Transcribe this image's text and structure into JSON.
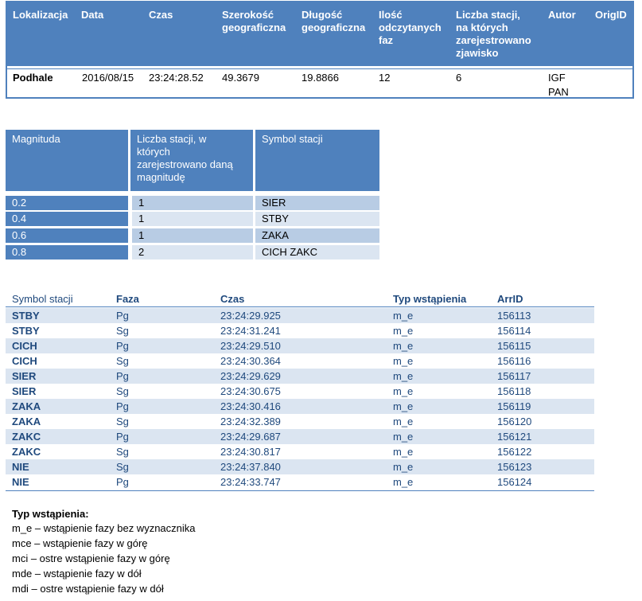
{
  "event_table": {
    "headers": [
      "Lokalizacja",
      "Data",
      "Czas",
      "Szerokość geograficzna",
      "Długość geograficzna",
      "Ilość odczytanych faz",
      "Liczba stacji, na których zarejestrowano zjawisko",
      "Autor",
      "OrigID"
    ],
    "header_lines": [
      [
        "Lokalizacja"
      ],
      [
        "Data"
      ],
      [
        "Czas"
      ],
      [
        "Szerokość",
        "geograficzna"
      ],
      [
        "Długość",
        "geograficzna"
      ],
      [
        "Ilość",
        "odczytanych",
        "faz"
      ],
      [
        "Liczba stacji,",
        "na których",
        "zarejestrowano",
        "zjawisko"
      ],
      [
        "Autor"
      ],
      [
        "OrigID"
      ]
    ],
    "row": {
      "lokalizacja": "Podhale",
      "data": "2016/08/15",
      "czas": "23:24:28.52",
      "szerokosc": "49.3679",
      "dlugosc": "19.8866",
      "ilosc_faz": "12",
      "liczba_stacji": "6",
      "autor_line1": "IGF",
      "autor_line2": "PAN",
      "origid": ""
    }
  },
  "magnitude_table": {
    "headers": {
      "magnituda": "Magnituda",
      "liczba_lines": [
        "Liczba stacji, w",
        "których",
        "zarejestrowano daną",
        "magnitudę"
      ],
      "symbol": "Symbol stacji"
    },
    "rows": [
      {
        "magnitude": "0.2",
        "count": "1",
        "stations": "SIER"
      },
      {
        "magnitude": "0.4",
        "count": "1",
        "stations": "STBY"
      },
      {
        "magnitude": "0.6",
        "count": "1",
        "stations": "ZAKA"
      },
      {
        "magnitude": "0.8",
        "count": "2",
        "stations": "CICH ZAKC"
      }
    ]
  },
  "phase_table": {
    "headers": {
      "station": "Symbol stacji",
      "phase": "Faza",
      "time": "Czas",
      "onset": "Typ wstąpienia",
      "arrid": "ArrID"
    },
    "rows": [
      {
        "station": "STBY",
        "phase": "Pg",
        "time": "23:24:29.925",
        "onset": "m_e",
        "arrid": "156113"
      },
      {
        "station": "STBY",
        "phase": "Sg",
        "time": "23:24:31.241",
        "onset": "m_e",
        "arrid": "156114"
      },
      {
        "station": "CICH",
        "phase": "Pg",
        "time": "23:24:29.510",
        "onset": "m_e",
        "arrid": "156115"
      },
      {
        "station": "CICH",
        "phase": "Sg",
        "time": "23:24:30.364",
        "onset": "m_e",
        "arrid": "156116"
      },
      {
        "station": "SIER",
        "phase": "Pg",
        "time": "23:24:29.629",
        "onset": "m_e",
        "arrid": "156117"
      },
      {
        "station": "SIER",
        "phase": "Sg",
        "time": "23:24:30.675",
        "onset": "m_e",
        "arrid": "156118"
      },
      {
        "station": "ZAKA",
        "phase": "Pg",
        "time": "23:24:30.416",
        "onset": "m_e",
        "arrid": "156119"
      },
      {
        "station": "ZAKA",
        "phase": "Sg",
        "time": "23:24:32.389",
        "onset": "m_e",
        "arrid": "156120"
      },
      {
        "station": "ZAKC",
        "phase": "Pg",
        "time": "23:24:29.687",
        "onset": "m_e",
        "arrid": "156121"
      },
      {
        "station": "ZAKC",
        "phase": "Sg",
        "time": "23:24:30.817",
        "onset": "m_e",
        "arrid": "156122"
      },
      {
        "station": "NIE",
        "phase": "Sg",
        "time": "23:24:37.840",
        "onset": "m_e",
        "arrid": "156123"
      },
      {
        "station": "NIE",
        "phase": "Pg",
        "time": "23:24:33.747",
        "onset": "m_e",
        "arrid": "156124"
      }
    ]
  },
  "legend": {
    "title": "Typ wstąpienia:",
    "items": [
      "m_e – wstąpienie fazy bez wyznacznika",
      "mce – wstąpienie fazy w górę",
      "mci – ostre wstąpienie fazy w górę",
      "mde – wstąpienie fazy w dół",
      "mdi – ostre wstąpienie fazy w dół"
    ]
  },
  "colors": {
    "header_blue": "#4f81bd",
    "light_blue": "#b8cce4",
    "lighter_blue": "#dbe5f1",
    "dark_text_blue": "#1f497d"
  }
}
